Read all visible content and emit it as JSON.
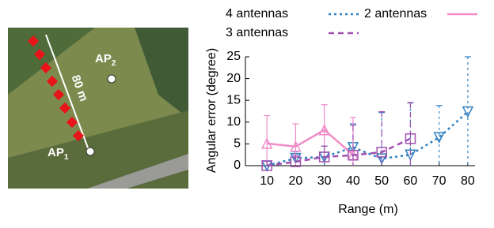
{
  "map_annotations": {
    "ap1": {
      "text": "AP",
      "sub": "1"
    },
    "ap2": {
      "text": "AP",
      "sub": "2"
    },
    "distance": "80 m"
  },
  "chart_data": {
    "type": "line",
    "xlabel": "Range (m)",
    "ylabel": "Angular error (degree)",
    "x": [
      10,
      20,
      30,
      40,
      50,
      60,
      70,
      80
    ],
    "xlim": [
      2.5,
      82.5
    ],
    "xticks": [
      10,
      20,
      30,
      40,
      50,
      60,
      70,
      80
    ],
    "ylim": [
      0,
      25
    ],
    "yticks": [
      0,
      5,
      10,
      15,
      20,
      25
    ],
    "grid": false,
    "series": [
      {
        "name": "4 antennas",
        "color": "#2f7fc1",
        "linestyle": "dotted",
        "marker": "triangle-down",
        "values": [
          0,
          1.7,
          2,
          4.2,
          1.6,
          2.5,
          6.5,
          12.4
        ],
        "errors": [
          1,
          1.5,
          2.5,
          5.4,
          10.6,
          11.9,
          7.3,
          12.6
        ]
      },
      {
        "name": "2 antennas",
        "color": "#f08cc8",
        "linestyle": "solid",
        "marker": "triangle-up",
        "values": [
          5.1,
          4.4,
          8.2,
          2.5,
          null,
          null,
          null,
          null
        ],
        "errors": [
          6.4,
          5.2,
          5.8,
          8.6,
          null,
          null,
          null,
          null
        ]
      },
      {
        "name": "3 antennas",
        "color": "#a050b0",
        "linestyle": "dashed",
        "marker": "square",
        "values": [
          0,
          0.9,
          2,
          2.4,
          3.1,
          6.2,
          null,
          null
        ],
        "errors": [
          1,
          1.5,
          2.5,
          6.9,
          9.3,
          8.3,
          null,
          null
        ]
      }
    ]
  }
}
